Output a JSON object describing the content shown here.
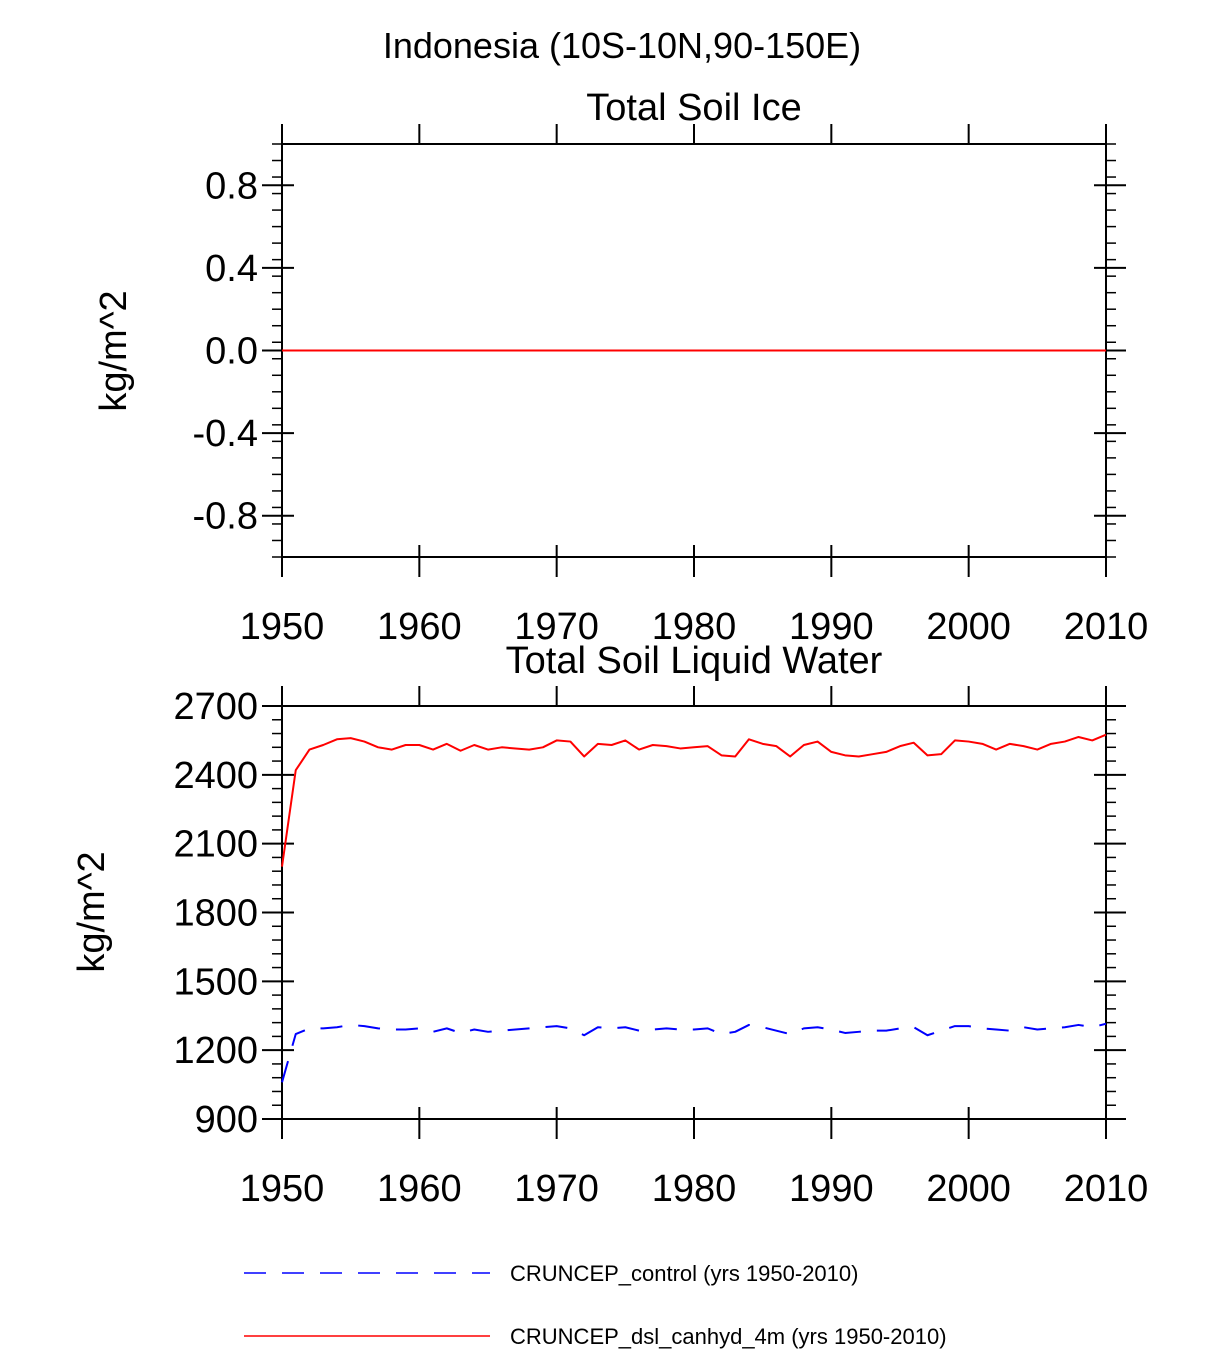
{
  "figure_title": "Indonesia (10S-10N,90-150E)",
  "legend": [
    {
      "label": "CRUNCEP_control (yrs 1950-2010)",
      "color": "#0000ff",
      "style": "dashed"
    },
    {
      "label": "CRUNCEP_dsl_canhyd_4m (yrs 1950-2010)",
      "color": "#ff0000",
      "style": "solid"
    }
  ],
  "chart_data": [
    {
      "type": "line",
      "title": "Total Soil Ice",
      "xlabel": "",
      "ylabel": "kg/m^2",
      "xlim": [
        1950,
        2010
      ],
      "ylim": [
        -1.0,
        1.0
      ],
      "xticks": [
        1950,
        1960,
        1970,
        1980,
        1990,
        2000,
        2010
      ],
      "yticks": [
        -0.8,
        -0.4,
        0.0,
        0.4,
        0.8
      ],
      "ytick_labels": [
        "-0.8",
        "-0.4",
        "0.0",
        "0.4",
        "0.8"
      ],
      "x_start": 1950,
      "series": [
        {
          "name": "CRUNCEP_control (yrs 1950-2010)",
          "color": "#0000ff",
          "style": "dashed",
          "values": [
            0,
            0,
            0,
            0,
            0,
            0,
            0,
            0,
            0,
            0,
            0,
            0,
            0,
            0,
            0,
            0,
            0,
            0,
            0,
            0,
            0,
            0,
            0,
            0,
            0,
            0,
            0,
            0,
            0,
            0,
            0,
            0,
            0,
            0,
            0,
            0,
            0,
            0,
            0,
            0,
            0,
            0,
            0,
            0,
            0,
            0,
            0,
            0,
            0,
            0,
            0,
            0,
            0,
            0,
            0,
            0,
            0,
            0,
            0,
            0,
            0
          ]
        },
        {
          "name": "CRUNCEP_dsl_canhyd_4m (yrs 1950-2010)",
          "color": "#ff0000",
          "style": "solid",
          "values": [
            0,
            0,
            0,
            0,
            0,
            0,
            0,
            0,
            0,
            0,
            0,
            0,
            0,
            0,
            0,
            0,
            0,
            0,
            0,
            0,
            0,
            0,
            0,
            0,
            0,
            0,
            0,
            0,
            0,
            0,
            0,
            0,
            0,
            0,
            0,
            0,
            0,
            0,
            0,
            0,
            0,
            0,
            0,
            0,
            0,
            0,
            0,
            0,
            0,
            0,
            0,
            0,
            0,
            0,
            0,
            0,
            0,
            0,
            0,
            0,
            0
          ]
        }
      ]
    },
    {
      "type": "line",
      "title": "Total Soil Liquid Water",
      "xlabel": "",
      "ylabel": "kg/m^2",
      "xlim": [
        1950,
        2010
      ],
      "ylim": [
        900,
        2700
      ],
      "xticks": [
        1950,
        1960,
        1970,
        1980,
        1990,
        2000,
        2010
      ],
      "yticks": [
        900,
        1200,
        1500,
        1800,
        2100,
        2400,
        2700
      ],
      "ytick_labels": [
        "900",
        "1200",
        "1500",
        "1800",
        "2100",
        "2400",
        "2700"
      ],
      "x_start": 1950,
      "series": [
        {
          "name": "CRUNCEP_control (yrs 1950-2010)",
          "color": "#0000ff",
          "style": "dashed",
          "values": [
            1060,
            1270,
            1295,
            1295,
            1300,
            1310,
            1305,
            1295,
            1290,
            1290,
            1295,
            1280,
            1295,
            1275,
            1290,
            1280,
            1285,
            1290,
            1295,
            1300,
            1305,
            1295,
            1265,
            1300,
            1295,
            1300,
            1285,
            1290,
            1295,
            1290,
            1290,
            1295,
            1270,
            1280,
            1310,
            1300,
            1285,
            1270,
            1295,
            1300,
            1290,
            1275,
            1280,
            1285,
            1285,
            1295,
            1300,
            1265,
            1285,
            1305,
            1305,
            1295,
            1290,
            1285,
            1300,
            1290,
            1295,
            1300,
            1310,
            1300,
            1315
          ]
        },
        {
          "name": "CRUNCEP_dsl_canhyd_4m (yrs 1950-2010)",
          "color": "#ff0000",
          "style": "solid",
          "values": [
            2000,
            2420,
            2510,
            2530,
            2555,
            2560,
            2545,
            2520,
            2510,
            2530,
            2530,
            2510,
            2535,
            2505,
            2530,
            2510,
            2520,
            2515,
            2510,
            2520,
            2550,
            2545,
            2480,
            2535,
            2530,
            2550,
            2510,
            2530,
            2525,
            2515,
            2520,
            2525,
            2485,
            2480,
            2555,
            2535,
            2525,
            2480,
            2530,
            2545,
            2500,
            2485,
            2480,
            2490,
            2500,
            2525,
            2540,
            2485,
            2490,
            2550,
            2545,
            2535,
            2510,
            2535,
            2525,
            2510,
            2535,
            2545,
            2565,
            2550,
            2575
          ]
        }
      ]
    }
  ]
}
